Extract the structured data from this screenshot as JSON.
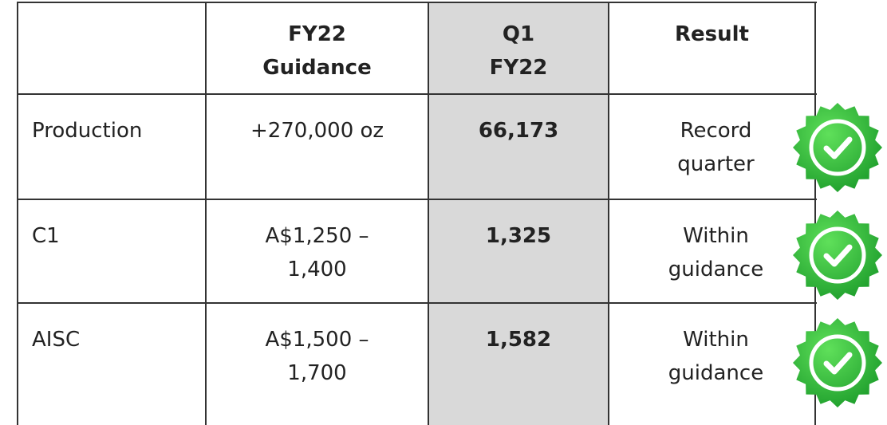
{
  "table": {
    "header": [
      "FY22\nGuidance",
      "Q1\nFY22",
      "Result"
    ],
    "rows": [
      [
        "Production",
        "+270,000 oz",
        "66,173",
        "Record\nquarter"
      ],
      [
        "C1",
        "A$1,250 –\n1,400",
        "1,325",
        "Within\nguidance"
      ],
      [
        "AISC",
        "A$1,500 –\n1,700",
        "1,582",
        "Within\nguidance"
      ]
    ]
  }
}
